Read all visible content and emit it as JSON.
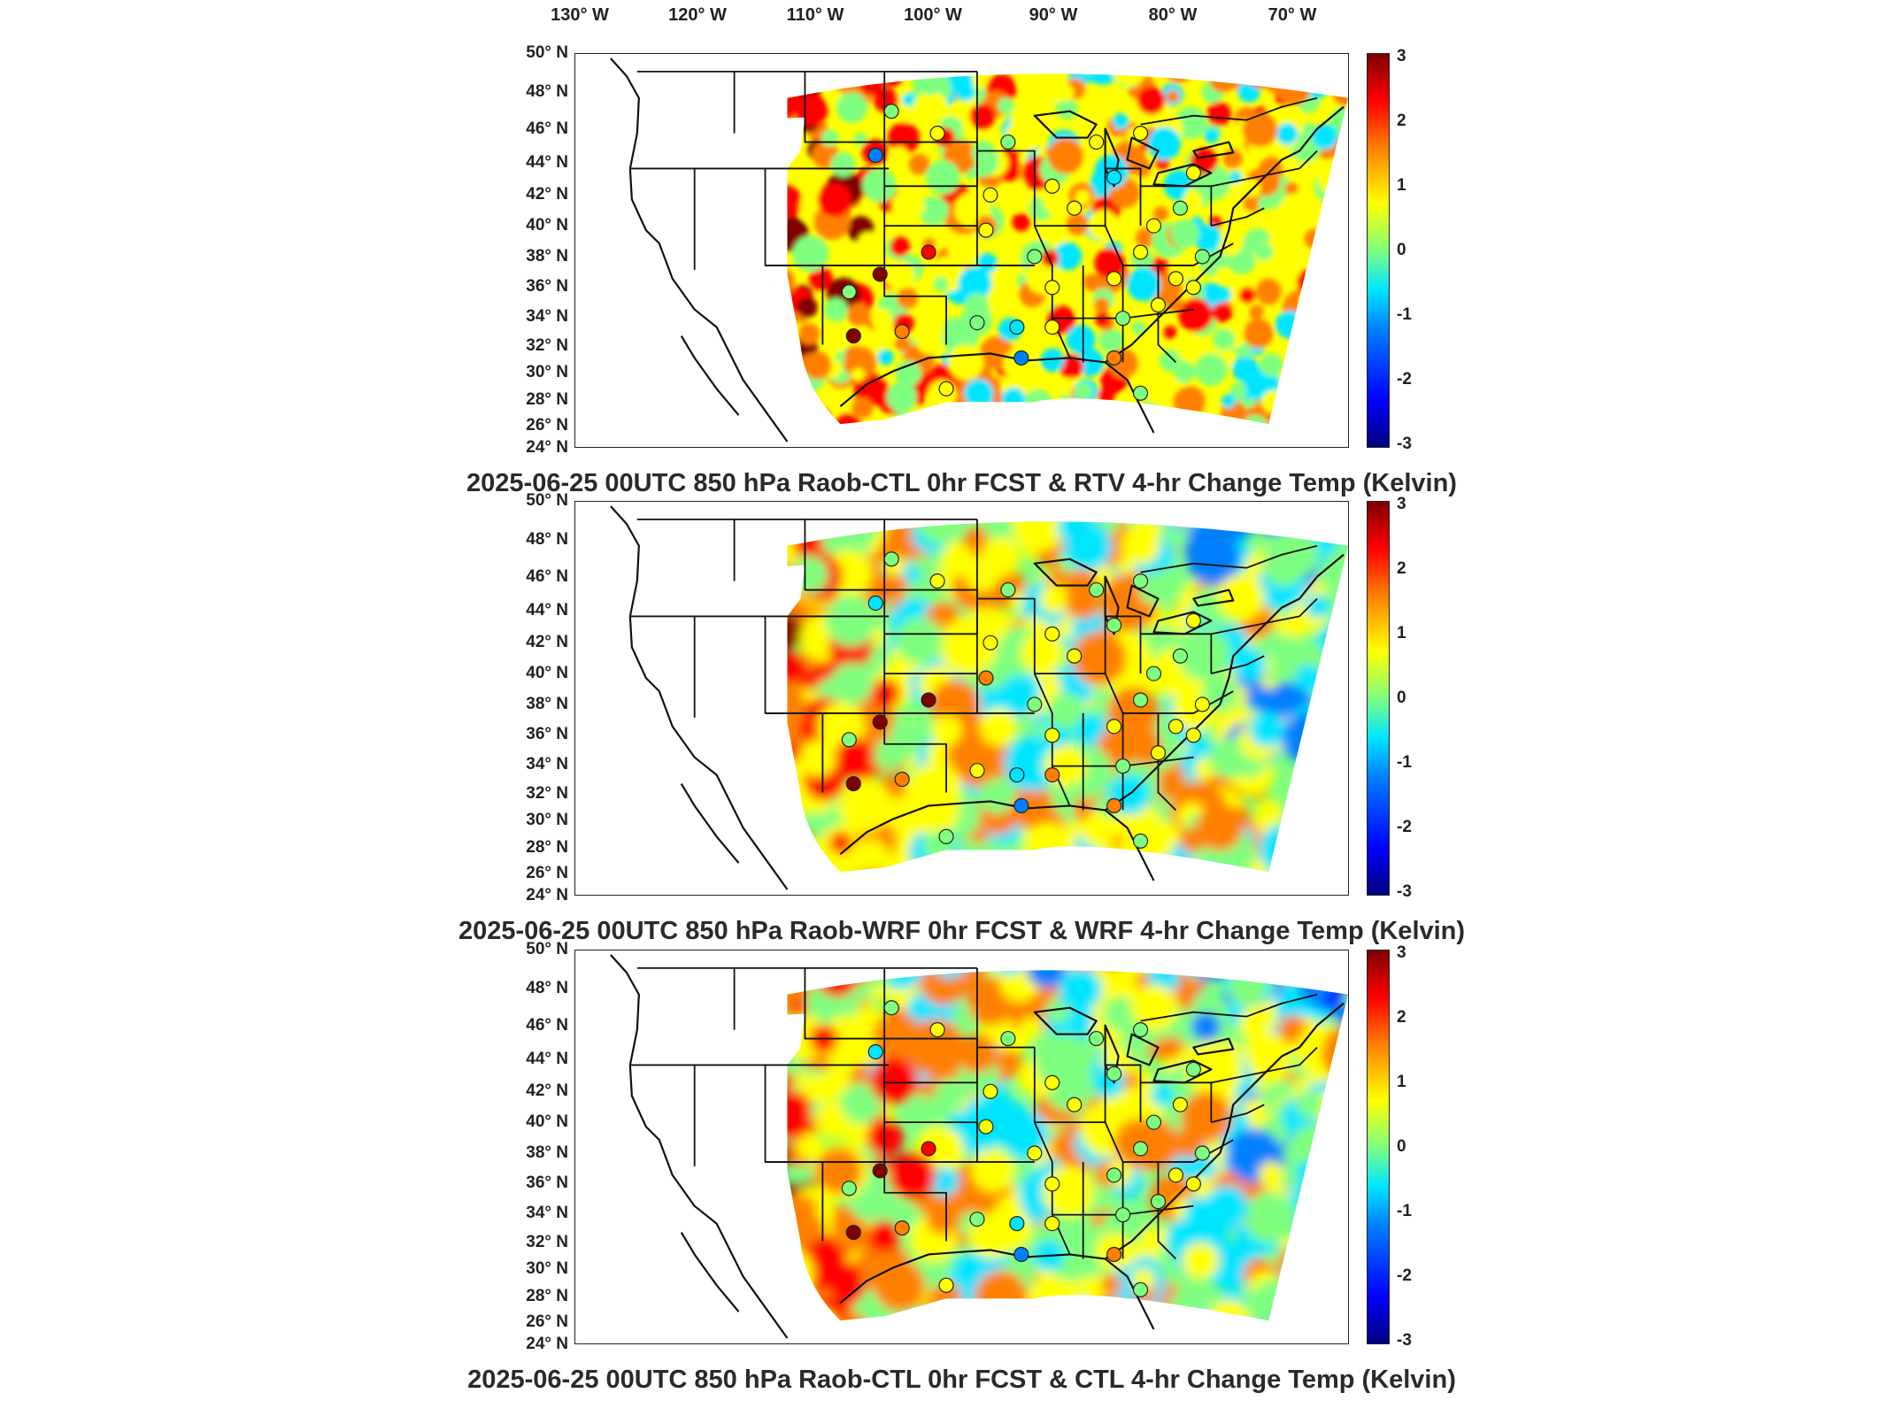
{
  "longitude_labels": [
    "130° W",
    "120° W",
    "110° W",
    "100° W",
    "90° W",
    "80° W",
    "70° W"
  ],
  "latitude_labels": [
    "50° N",
    "48° N",
    "46° N",
    "44° N",
    "42° N",
    "40° N",
    "38° N",
    "36° N",
    "34° N",
    "32° N",
    "30° N",
    "28° N",
    "26° N",
    "24° N"
  ],
  "colorbar": {
    "ticks": [
      "3",
      "2",
      "1",
      "0",
      "-1",
      "-2",
      "-3"
    ],
    "min": -3,
    "max": 3,
    "colors": [
      "#00007f",
      "#0000ff",
      "#0080ff",
      "#00e5ff",
      "#7fff7f",
      "#ffff00",
      "#ff8000",
      "#ff0000",
      "#7f0000"
    ]
  },
  "panels": [
    {
      "title": "2025-06-25 00UTC 850 hPa Raob-CTL 0hr FCST & RTV 4-hr Change Temp (Kelvin)",
      "field": "rtv"
    },
    {
      "title": "2025-06-25 00UTC 850 hPa Raob-WRF 0hr FCST & WRF 4-hr Change Temp (Kelvin)",
      "field": "wrf"
    },
    {
      "title": "2025-06-25 00UTC 850 hPa Raob-CTL 0hr FCST & CTL 4-hr Change Temp (Kelvin)",
      "field": "ctl"
    }
  ]
}
